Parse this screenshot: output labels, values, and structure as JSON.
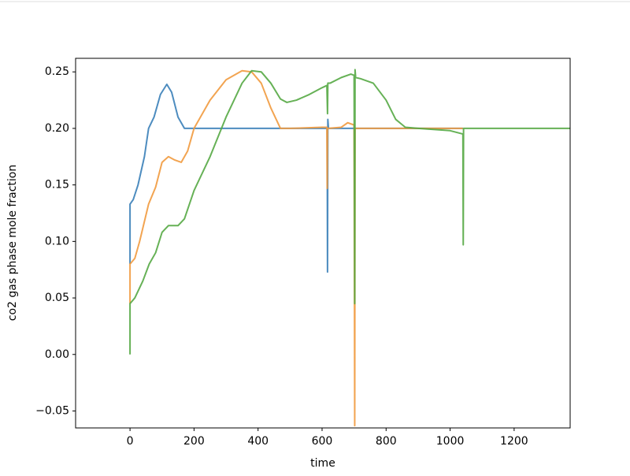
{
  "chart_data": {
    "type": "line",
    "xlabel": "time",
    "ylabel": "co2 gas phase mole fraction",
    "xlim": [
      -170,
      1375
    ],
    "ylim": [
      -0.065,
      0.262
    ],
    "xticks": [
      0,
      200,
      400,
      600,
      800,
      1000,
      1200
    ],
    "yticks": [
      {
        "value": -0.05,
        "label": "−0.05"
      },
      {
        "value": 0,
        "label": "0.00"
      },
      {
        "value": 0.05,
        "label": "0.05"
      },
      {
        "value": 0.1,
        "label": "0.10"
      },
      {
        "value": 0.15,
        "label": "0.15"
      },
      {
        "value": 0.2,
        "label": "0.20"
      },
      {
        "value": 0.25,
        "label": "0.25"
      }
    ],
    "series": [
      {
        "color": "#3a7fb8",
        "x": [
          0,
          0,
          10,
          25,
          45,
          58,
          75,
          95,
          115,
          130,
          150,
          170,
          200,
          400,
          616,
          617,
          618,
          620,
          1040
        ],
        "values": [
          0.08,
          0.133,
          0.137,
          0.15,
          0.175,
          0.2,
          0.21,
          0.23,
          0.239,
          0.232,
          0.21,
          0.2,
          0.2,
          0.2,
          0.2,
          0.073,
          0.208,
          0.2,
          0.2
        ]
      },
      {
        "color": "#f19a3e",
        "x": [
          0,
          0,
          15,
          30,
          58,
          80,
          100,
          120,
          140,
          160,
          180,
          200,
          250,
          300,
          350,
          380,
          410,
          440,
          470,
          500,
          600,
          615,
          616,
          617,
          620,
          660,
          680,
          700,
          702,
          703,
          720,
          1000,
          1040
        ],
        "values": [
          0.045,
          0.08,
          0.085,
          0.1,
          0.133,
          0.148,
          0.17,
          0.175,
          0.172,
          0.17,
          0.18,
          0.2,
          0.225,
          0.243,
          0.251,
          0.25,
          0.24,
          0.218,
          0.2,
          0.2,
          0.201,
          0.201,
          0.147,
          0.2,
          0.2,
          0.201,
          0.205,
          0.203,
          -0.063,
          0.2,
          0.2,
          0.2,
          0.2
        ]
      },
      {
        "color": "#55a844",
        "x": [
          0,
          0,
          15,
          40,
          60,
          80,
          100,
          120,
          150,
          170,
          200,
          250,
          300,
          350,
          380,
          410,
          440,
          470,
          490,
          520,
          560,
          600,
          615,
          617,
          618,
          625,
          660,
          690,
          700,
          702,
          703,
          705,
          720,
          760,
          800,
          830,
          860,
          900,
          1000,
          1040,
          1041,
          1042,
          1200,
          1375
        ],
        "values": [
          0,
          0.045,
          0.05,
          0.065,
          0.08,
          0.09,
          0.108,
          0.114,
          0.114,
          0.12,
          0.145,
          0.175,
          0.21,
          0.24,
          0.251,
          0.25,
          0.24,
          0.226,
          0.223,
          0.225,
          0.23,
          0.236,
          0.238,
          0.213,
          0.24,
          0.24,
          0.245,
          0.248,
          0.247,
          0.045,
          0.252,
          0.245,
          0.244,
          0.24,
          0.225,
          0.208,
          0.201,
          0.2,
          0.198,
          0.195,
          0.097,
          0.2,
          0.2,
          0.2
        ]
      }
    ]
  }
}
